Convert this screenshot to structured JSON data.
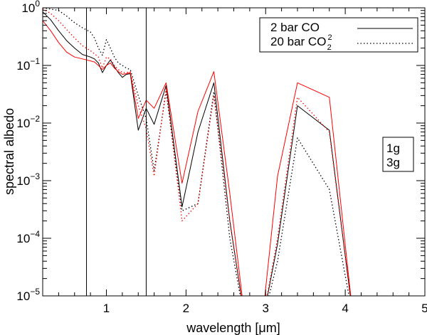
{
  "chart_data": {
    "type": "line",
    "xlabel": "wavelength [μm]",
    "ylabel": "spectral albedo",
    "xlim": [
      0.2,
      5.0
    ],
    "ylim": [
      1e-05,
      1.0
    ],
    "yscale": "log",
    "x_ticks": [
      1,
      2,
      3,
      4,
      5
    ],
    "x_tick_labels": [
      "1",
      "2",
      "3",
      "4",
      "5"
    ],
    "y_ticks": [
      1e-05,
      0.0001,
      0.001,
      0.01,
      0.1,
      1.0
    ],
    "y_tick_labels": [
      {
        "base": "10",
        "exp": "−5"
      },
      {
        "base": "10",
        "exp": "−4"
      },
      {
        "base": "10",
        "exp": "−3"
      },
      {
        "base": "10",
        "exp": "−2"
      },
      {
        "base": "10",
        "exp": "−1"
      },
      {
        "base": "10",
        "exp": "0"
      }
    ],
    "vertical_lines": [
      0.75,
      1.5
    ],
    "grid": false,
    "legend_linestyle": {
      "position": "top-right",
      "entries": [
        {
          "label": "2 bar CO",
          "sub": "",
          "sup": "",
          "style": "solid"
        },
        {
          "label": "20 bar CO",
          "sub": "2",
          "sup": "2",
          "style": "dotted"
        }
      ]
    },
    "legend_color": {
      "position": "right",
      "entries": [
        {
          "label": "1g",
          "color": "#000000"
        },
        {
          "label": "3g",
          "color": "#ff0000"
        }
      ]
    },
    "series": [
      {
        "gravity": "1g",
        "atmosphere": "2 bar CO",
        "color": "#000000",
        "style": "solid",
        "x": [
          0.2,
          0.3,
          0.4,
          0.5,
          0.6,
          0.7,
          0.8,
          0.85,
          0.9,
          0.95,
          1.0,
          1.05,
          1.1,
          1.15,
          1.2,
          1.25,
          1.3,
          1.4,
          1.5,
          1.6,
          1.75,
          1.95,
          2.15,
          2.35,
          2.55,
          2.75,
          2.95,
          3.15,
          3.4,
          3.8,
          4.1
        ],
        "y": [
          0.85,
          0.62,
          0.4,
          0.27,
          0.2,
          0.155,
          0.14,
          0.13,
          0.11,
          0.075,
          0.1,
          0.125,
          0.095,
          0.075,
          0.062,
          0.07,
          0.072,
          0.0075,
          0.018,
          0.0095,
          0.045,
          0.00035,
          0.007,
          0.05,
          0.0002,
          3e-06,
          3e-06,
          8e-05,
          0.02,
          0.0075,
          4e-06
        ]
      },
      {
        "gravity": "3g",
        "atmosphere": "2 bar CO",
        "color": "#ff0000",
        "style": "solid",
        "x": [
          0.2,
          0.3,
          0.4,
          0.5,
          0.6,
          0.7,
          0.8,
          0.85,
          0.9,
          0.95,
          1.0,
          1.05,
          1.1,
          1.15,
          1.2,
          1.25,
          1.3,
          1.4,
          1.5,
          1.6,
          1.75,
          1.95,
          2.15,
          2.35,
          2.55,
          2.75,
          2.95,
          3.15,
          3.4,
          3.8,
          4.1
        ],
        "y": [
          0.6,
          0.4,
          0.25,
          0.17,
          0.14,
          0.13,
          0.12,
          0.115,
          0.1,
          0.085,
          0.1,
          0.11,
          0.09,
          0.078,
          0.07,
          0.072,
          0.075,
          0.012,
          0.025,
          0.018,
          0.05,
          0.0009,
          0.016,
          0.078,
          0.0006,
          3e-06,
          3e-06,
          0.0012,
          0.05,
          0.028,
          4e-06
        ]
      },
      {
        "gravity": "1g",
        "atmosphere": "20 bar CO2",
        "color": "#000000",
        "style": "dotted",
        "x": [
          0.2,
          0.3,
          0.4,
          0.5,
          0.6,
          0.7,
          0.8,
          0.85,
          0.9,
          0.95,
          1.0,
          1.05,
          1.1,
          1.15,
          1.2,
          1.25,
          1.3,
          1.4,
          1.5,
          1.6,
          1.75,
          1.95,
          2.15,
          2.35,
          2.55,
          2.75,
          2.95,
          3.15,
          3.4,
          3.8,
          4.1
        ],
        "y": [
          1.0,
          0.95,
          0.9,
          0.72,
          0.55,
          0.45,
          0.38,
          0.3,
          0.2,
          0.15,
          0.28,
          0.2,
          0.14,
          0.11,
          0.1,
          0.09,
          0.085,
          0.03,
          0.012,
          0.0015,
          0.035,
          0.0003,
          0.0004,
          0.035,
          0.0001,
          3e-06,
          3e-06,
          4e-05,
          0.0055,
          0.0007,
          4e-06
        ]
      },
      {
        "gravity": "3g",
        "atmosphere": "20 bar CO2",
        "color": "#ff0000",
        "style": "dotted",
        "x": [
          0.2,
          0.3,
          0.4,
          0.5,
          0.6,
          0.7,
          0.8,
          0.85,
          0.9,
          0.95,
          1.0,
          1.05,
          1.1,
          1.15,
          1.2,
          1.25,
          1.3,
          1.4,
          1.5,
          1.6,
          1.75,
          1.95,
          2.15,
          2.35,
          2.55,
          2.75,
          2.95,
          3.15,
          3.4,
          3.8,
          4.1
        ],
        "y": [
          0.95,
          0.8,
          0.6,
          0.42,
          0.3,
          0.22,
          0.18,
          0.16,
          0.14,
          0.09,
          0.14,
          0.13,
          0.1,
          0.085,
          0.075,
          0.075,
          0.078,
          0.02,
          0.008,
          0.0012,
          0.04,
          0.0002,
          0.0004,
          0.03,
          0.0002,
          3e-06,
          3e-06,
          0.0001,
          0.028,
          0.007,
          4e-06
        ]
      }
    ]
  }
}
